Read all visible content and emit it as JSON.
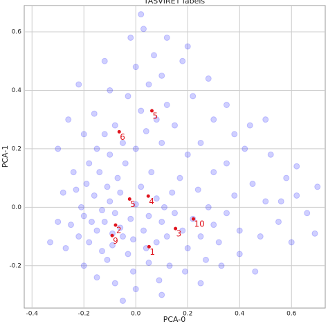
{
  "chart_data": {
    "type": "scatter",
    "title": "TASVIRET labels",
    "x_label": "PCA-0",
    "y_label": "PCA-1",
    "xlim": [
      -0.43,
      0.73
    ],
    "ylim": [
      -0.345,
      0.69
    ],
    "xticks": [
      -0.4,
      -0.2,
      {
        "value": 0,
        "label": "0.0"
      },
      0.2,
      0.4,
      0.6
    ],
    "yticks": [
      -0.2,
      {
        "value": 0,
        "label": "0.0"
      },
      0.2,
      0.4,
      0.6
    ],
    "grid": true,
    "color": "#1010ff",
    "alpha": 0.2,
    "series": [
      {
        "x": [
          -0.12,
          -0.08,
          -0.15,
          -0.05,
          -0.2,
          -0.1,
          -0.02,
          0.03,
          -0.18,
          -0.13,
          -0.06,
          -0.22,
          -0.09,
          0.0,
          0.05,
          -0.16,
          -0.25,
          -0.11,
          -0.03,
          0.08,
          -0.19,
          -0.07,
          0.02,
          -0.14,
          0.1,
          0.12,
          -0.27,
          -0.21,
          -0.04,
          0.06,
          0.15,
          0.18,
          0.2,
          0.22,
          0.25,
          0.28,
          0.3,
          0.14,
          0.17,
          0.24,
          0.32,
          0.35,
          0.38,
          0.4,
          0.27,
          0.13,
          0.05,
          -0.01,
          0.09,
          0.19,
          -0.1,
          -0.05,
          0.0,
          0.04,
          -0.08,
          0.02,
          0.08,
          -0.03,
          0.05,
          0.1,
          0.12,
          0.15,
          -0.12,
          -0.15,
          -0.18,
          0.0,
          0.07,
          -0.02,
          0.03,
          0.1,
          0.2,
          0.25,
          0.3,
          0.35,
          0.42,
          0.45,
          0.5,
          0.55,
          0.48,
          0.58,
          0.62,
          0.66,
          0.7,
          0.52,
          0.44,
          0.38,
          0.3,
          0.22,
          0.18,
          0.12,
          -0.3,
          -0.33,
          -0.28,
          -0.24,
          -0.3,
          -0.2,
          -0.26,
          -0.16,
          -0.1,
          -0.2,
          -0.15,
          -0.08,
          0.0,
          0.1,
          -0.05,
          0.25,
          0.33,
          0.4,
          0.46,
          0.6,
          0.69,
          0.56,
          0.62,
          0.5,
          0.35,
          0.28,
          0.2,
          0.02,
          -0.12,
          -0.22,
          -0.06,
          -0.13,
          -0.17,
          -0.09,
          -0.01,
          0.04,
          0.08,
          0.11,
          -0.23,
          -0.11
        ],
        "y": [
          -0.05,
          -0.02,
          -0.08,
          -0.1,
          -0.03,
          0.02,
          -0.04,
          -0.08,
          -0.12,
          -0.15,
          0.05,
          -0.1,
          -0.13,
          0.01,
          -0.03,
          0.04,
          -0.06,
          -0.18,
          -0.16,
          -0.12,
          0.08,
          0.1,
          0.07,
          0.12,
          -0.05,
          -0.1,
          -0.14,
          0.0,
          0.15,
          0.12,
          -0.02,
          -0.08,
          -0.14,
          -0.04,
          -0.1,
          0.0,
          -0.06,
          0.05,
          0.1,
          0.06,
          -0.12,
          -0.02,
          0.04,
          -0.08,
          -0.18,
          -0.2,
          -0.19,
          -0.22,
          -0.25,
          -0.22,
          0.18,
          0.22,
          0.2,
          0.26,
          0.28,
          0.33,
          0.3,
          0.38,
          0.42,
          0.22,
          0.35,
          0.28,
          0.25,
          0.2,
          0.15,
          0.48,
          0.52,
          0.58,
          0.61,
          0.45,
          0.18,
          0.22,
          0.12,
          0.15,
          0.2,
          0.08,
          0.02,
          -0.05,
          -0.1,
          0.1,
          0.04,
          -0.02,
          0.07,
          0.18,
          0.28,
          0.25,
          0.3,
          0.38,
          0.5,
          0.58,
          -0.05,
          -0.12,
          0.05,
          0.12,
          0.2,
          0.25,
          0.3,
          0.32,
          0.4,
          -0.2,
          -0.24,
          -0.26,
          -0.28,
          -0.3,
          -0.32,
          -0.26,
          -0.2,
          -0.16,
          -0.22,
          -0.12,
          -0.09,
          0.02,
          0.14,
          0.3,
          0.35,
          0.44,
          0.55,
          0.66,
          0.5,
          0.42,
          -0.07,
          -0.01,
          -0.05,
          -0.09,
          -0.11,
          -0.14,
          0.03,
          0.0,
          0.06,
          0.07
        ]
      }
    ],
    "annotations": [
      {
        "x": 0.062,
        "y": 0.33,
        "text": "5"
      },
      {
        "x": -0.064,
        "y": 0.258,
        "text": "6"
      },
      {
        "x": -0.024,
        "y": 0.028,
        "text": "5"
      },
      {
        "x": 0.048,
        "y": 0.038,
        "text": "4"
      },
      {
        "x": -0.078,
        "y": -0.061,
        "text": "2"
      },
      {
        "x": -0.091,
        "y": -0.097,
        "text": "9"
      },
      {
        "x": 0.153,
        "y": -0.073,
        "text": "3"
      },
      {
        "x": 0.222,
        "y": -0.04,
        "text": "10"
      },
      {
        "x": 0.051,
        "y": -0.135,
        "text": "1"
      }
    ],
    "annotation_color": "#e0141e"
  }
}
